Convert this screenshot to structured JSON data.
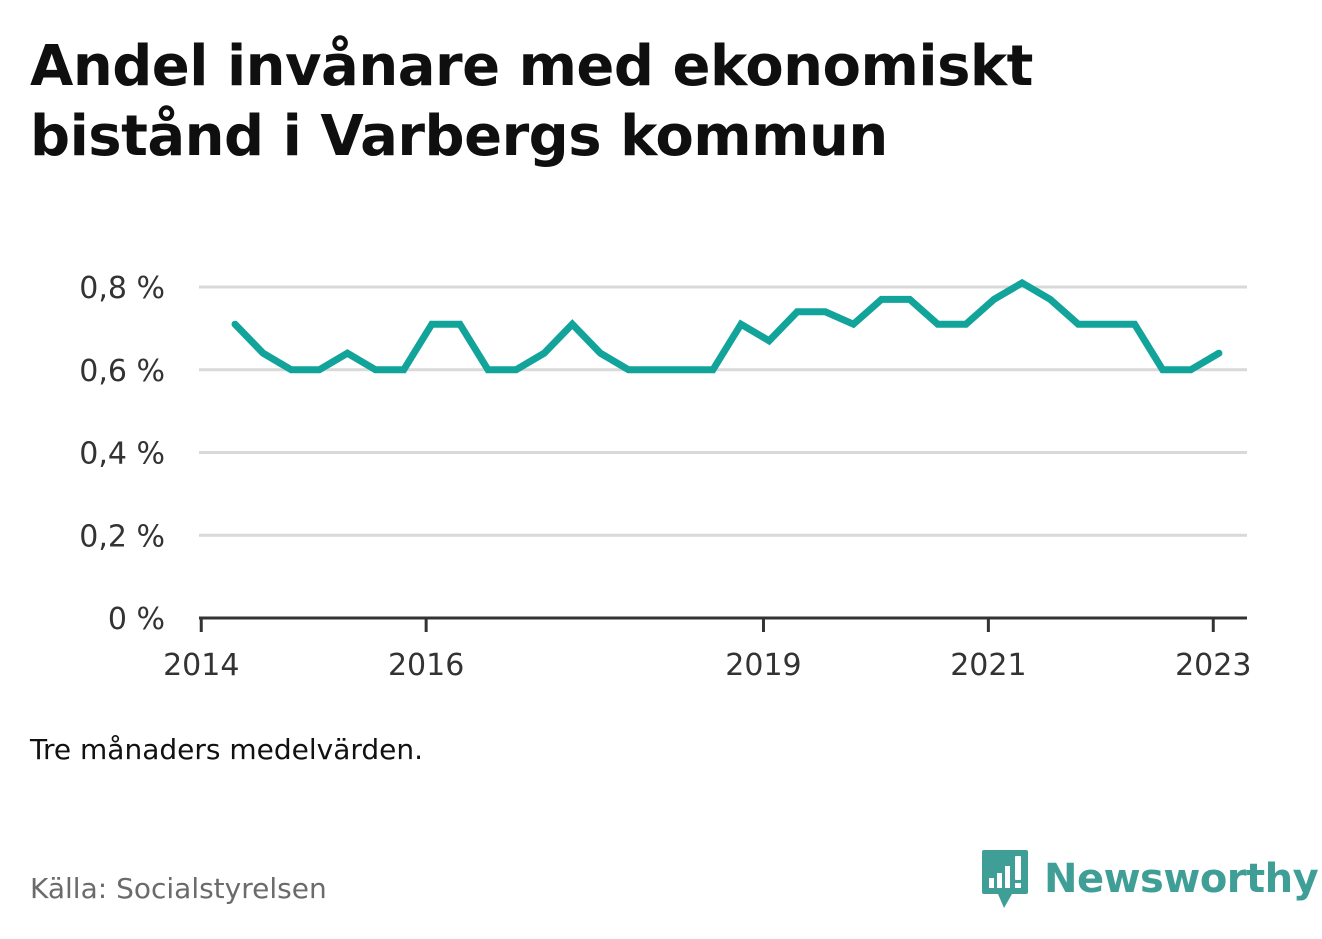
{
  "title_lines": [
    "Andel invånare med ekonomiskt",
    "bistånd i Varbergs kommun"
  ],
  "note": "Tre månaders medelvärden.",
  "source": "Källa: Socialstyrelsen",
  "brand": {
    "name": "Newsworthy",
    "icon": "newsworthy-logo-icon",
    "color": "#3f9e96"
  },
  "colors": {
    "line": "#12a39a",
    "grid": "#d9d9d9",
    "axis": "#333333",
    "tick_label": "#333333"
  },
  "chart_data": {
    "type": "line",
    "title": "Andel invånare med ekonomiskt bistånd i Varbergs kommun",
    "xlabel": "",
    "ylabel": "",
    "x_unit": "year",
    "xlim": [
      2013.98,
      2023.3
    ],
    "ylim": [
      0,
      0.8
    ],
    "yticks": [
      0,
      0.2,
      0.4,
      0.6,
      0.8
    ],
    "ytick_labels": [
      "0 %",
      "0,2 %",
      "0,4 %",
      "0,6 %",
      "0,8 %"
    ],
    "xticks": [
      2014,
      2016,
      2019,
      2021,
      2023
    ],
    "xtick_labels": [
      "2014",
      "2016",
      "2019",
      "2021",
      "2023"
    ],
    "grid": true,
    "legend": "none",
    "series": [
      {
        "x": [
          2014.3,
          2014.55,
          2014.8,
          2015.05,
          2015.3,
          2015.55,
          2015.8,
          2016.05,
          2016.3,
          2016.55,
          2016.8,
          2017.05,
          2017.3,
          2017.55,
          2017.8,
          2018.05,
          2018.3,
          2018.55,
          2018.8,
          2019.05,
          2019.3,
          2019.55,
          2019.8,
          2020.05,
          2020.3,
          2020.55,
          2020.8,
          2021.05,
          2021.3,
          2021.55,
          2021.8,
          2022.05,
          2022.3,
          2022.55,
          2022.8,
          2023.05
        ],
        "values": [
          0.71,
          0.64,
          0.6,
          0.6,
          0.64,
          0.6,
          0.6,
          0.71,
          0.71,
          0.6,
          0.6,
          0.64,
          0.71,
          0.64,
          0.6,
          0.6,
          0.6,
          0.6,
          0.71,
          0.67,
          0.74,
          0.74,
          0.71,
          0.77,
          0.77,
          0.71,
          0.71,
          0.77,
          0.81,
          0.77,
          0.71,
          0.71,
          0.71,
          0.6,
          0.6,
          0.64
        ]
      }
    ]
  }
}
